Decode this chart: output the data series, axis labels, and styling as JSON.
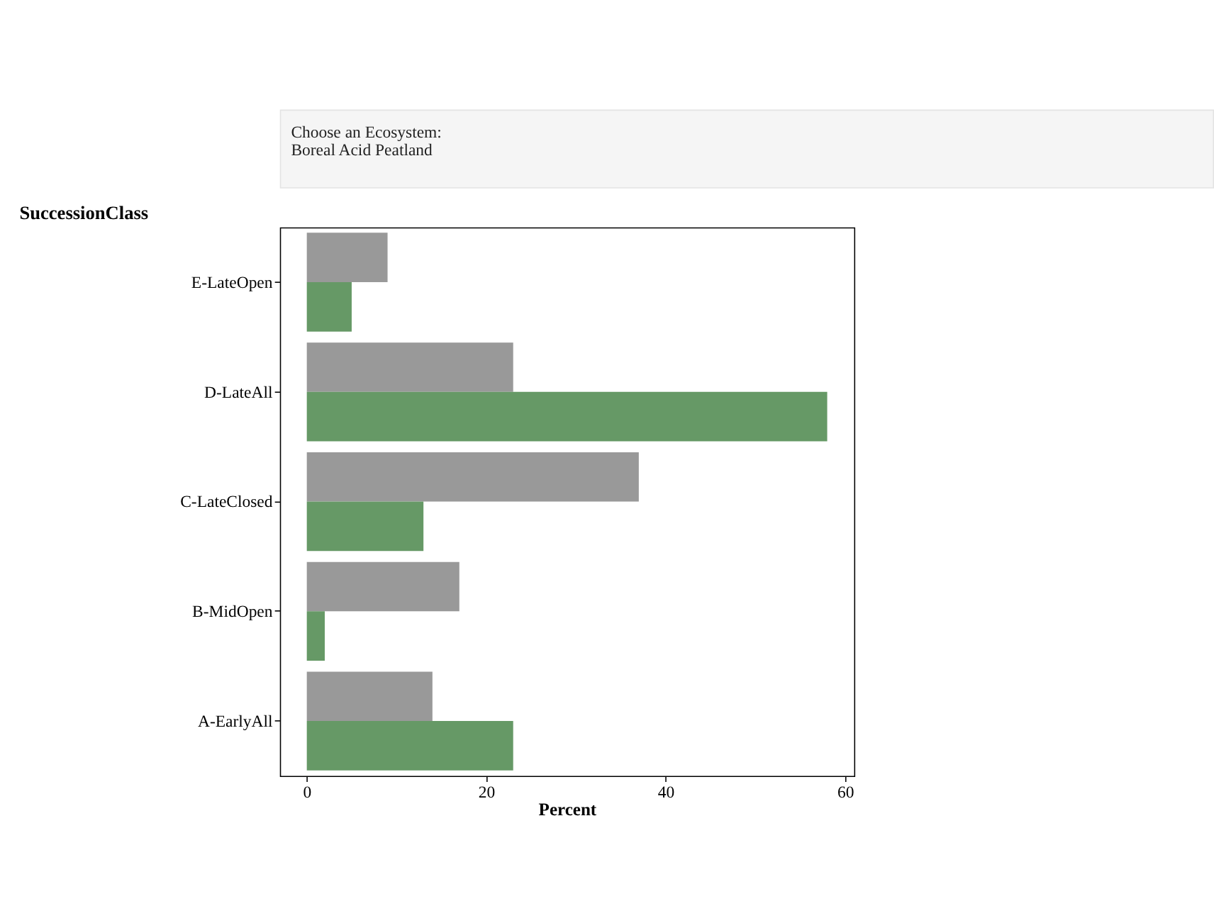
{
  "chart_data": {
    "type": "bar",
    "orientation": "horizontal",
    "annotations": [
      "Choose an Ecosystem:",
      "Boreal Acid Peatland"
    ],
    "xlabel": "Percent",
    "ylabel": "SuccessionClass",
    "categories": [
      "E-LateOpen",
      "D-LateAll",
      "C-LateClosed",
      "B-MidOpen",
      "A-EarlyAll"
    ],
    "series": [
      {
        "color": "#999999",
        "values": [
          9,
          23,
          37,
          17,
          14
        ]
      },
      {
        "color": "#669966",
        "values": [
          5,
          58,
          13,
          2,
          23
        ]
      }
    ],
    "xlim": [
      -3,
      61
    ],
    "xticks": [
      0,
      20,
      40,
      60
    ]
  }
}
